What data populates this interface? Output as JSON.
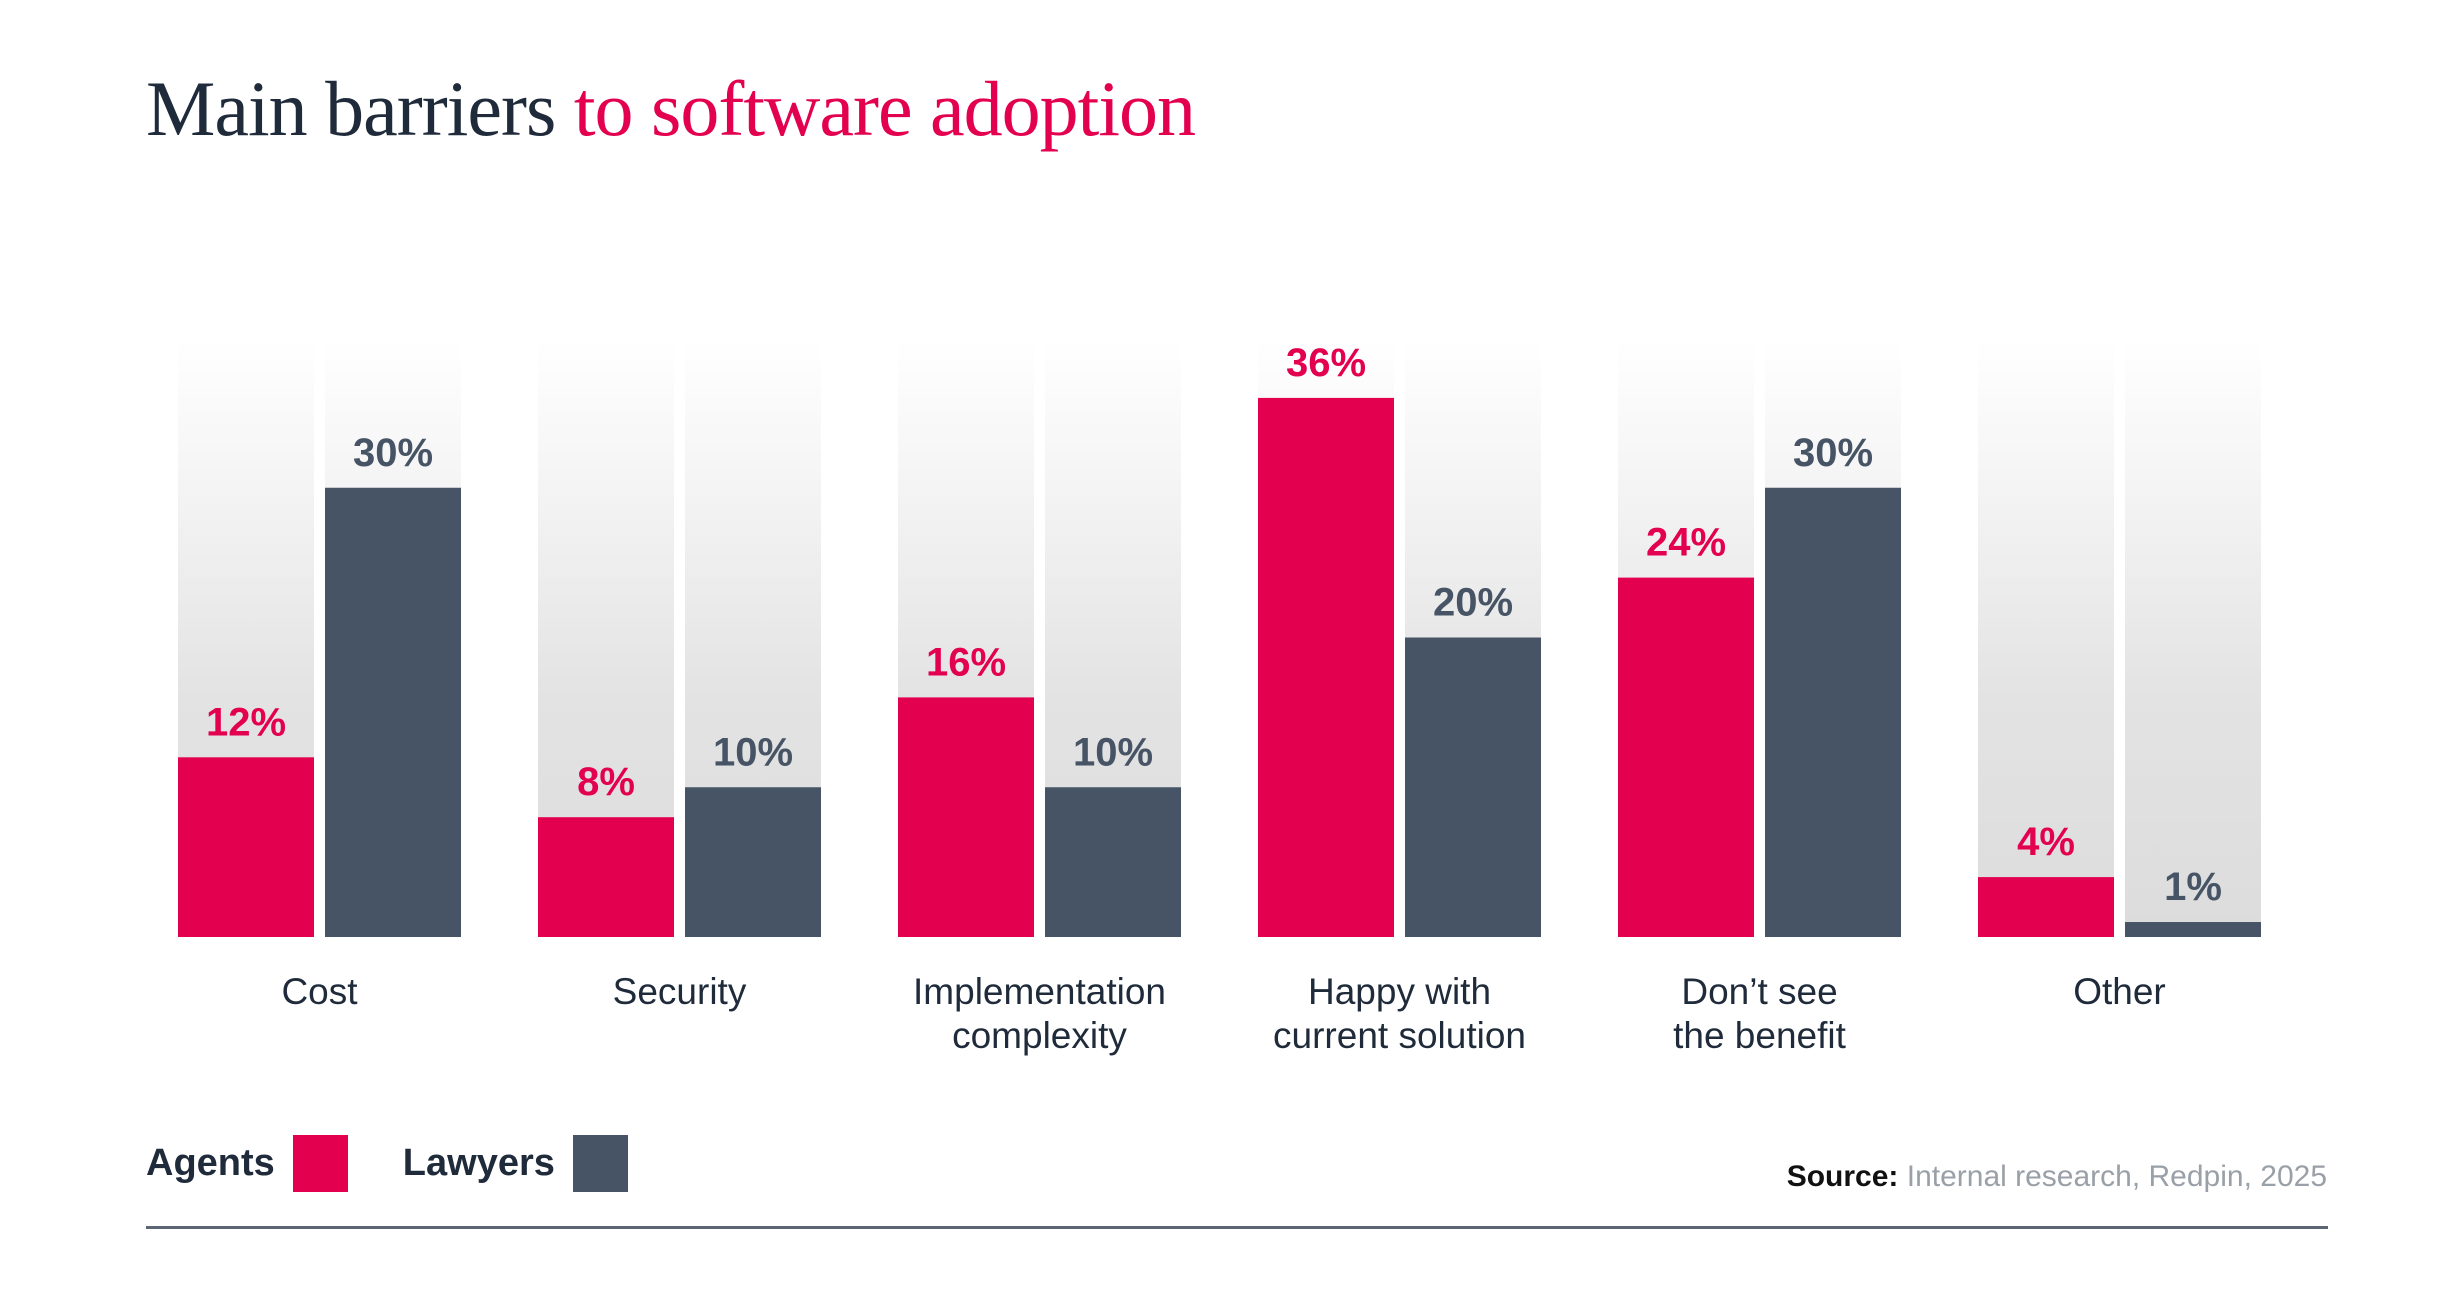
{
  "title": {
    "part1": "Main barriers",
    "part2": "to software adoption"
  },
  "colors": {
    "agents": "#e3004f",
    "lawyers": "#465465",
    "title_dark": "#1f2b3a",
    "accent": "#e3004f"
  },
  "legend": [
    {
      "label": "Agents",
      "color": "#e3004f"
    },
    {
      "label": "Lawyers",
      "color": "#465465"
    }
  ],
  "source": {
    "label": "Source:",
    "text": "Internal research, Redpin, 2025"
  },
  "chart_data": {
    "type": "bar",
    "title": "Main barriers to software adoption",
    "xlabel": "",
    "ylabel": "",
    "ylim": [
      0,
      40
    ],
    "grid": false,
    "legend_position": "bottom-left",
    "categories": [
      [
        "Cost"
      ],
      [
        "Security"
      ],
      [
        "Implementation",
        "complexity"
      ],
      [
        "Happy with",
        "current solution"
      ],
      [
        "Don’t see",
        "the benefit"
      ],
      [
        "Other"
      ]
    ],
    "series": [
      {
        "name": "Agents",
        "values": [
          12,
          8,
          16,
          36,
          24,
          4
        ],
        "labels": [
          "12%",
          "8%",
          "16%",
          "36%",
          "24%",
          "4%"
        ]
      },
      {
        "name": "Lawyers",
        "values": [
          30,
          10,
          10,
          20,
          30,
          1
        ],
        "labels": [
          "30%",
          "10%",
          "10%",
          "20%",
          "30%",
          "1%"
        ]
      }
    ]
  }
}
